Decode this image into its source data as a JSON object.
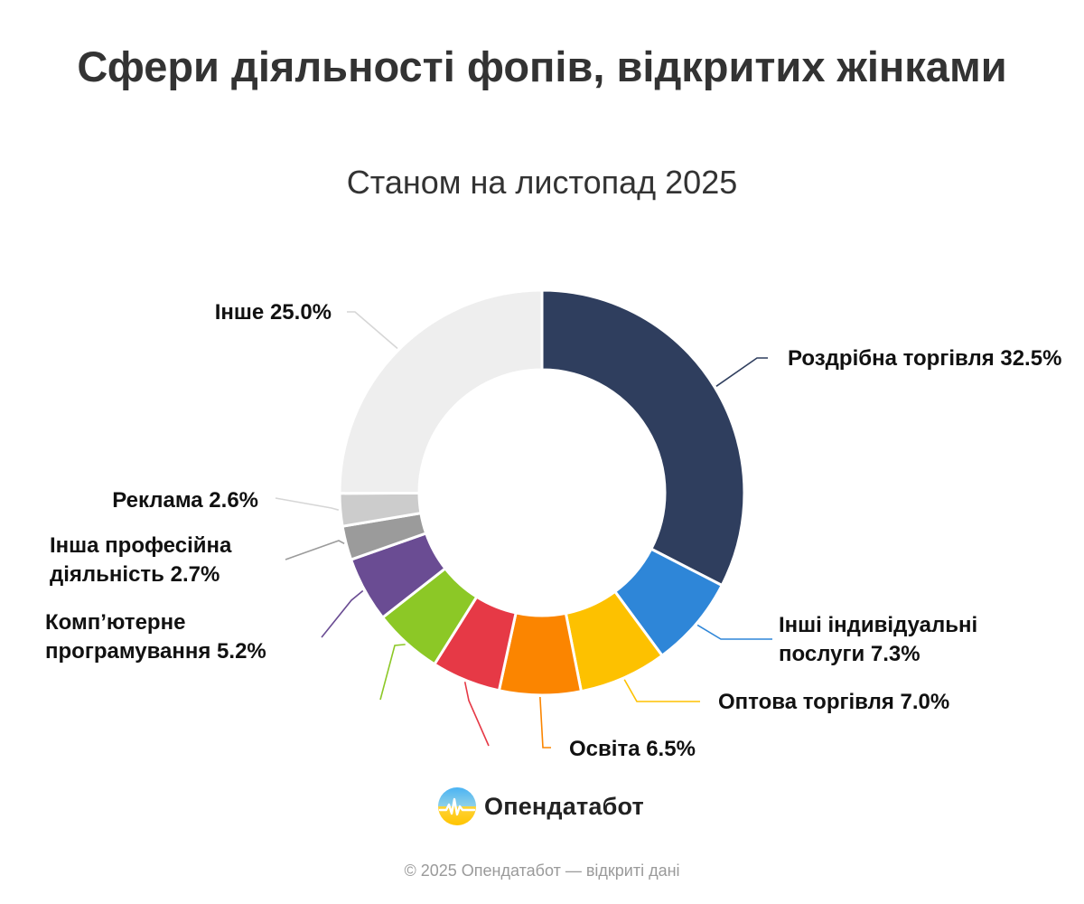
{
  "title": "Сфери діяльності фопів, відкритих жінками",
  "subtitle": "Станом на листопад 2025",
  "brand": {
    "name": "Опендатабот"
  },
  "footer": "© 2025 Опендатабот — відкриті дані",
  "chart_data": {
    "type": "pie",
    "donut": true,
    "legend": "none",
    "slices": [
      {
        "label": "Роздрібна торгівля 32.5%",
        "value": 32.5,
        "color": "#2f3e5e"
      },
      {
        "label": "Інші індивідуальні послуги 7.3%",
        "value": 7.3,
        "color": "#2e86d8"
      },
      {
        "label": "Оптова торгівля 7.0%",
        "value": 7.0,
        "color": "#fdc100"
      },
      {
        "label": "Освіта 6.5%",
        "value": 6.5,
        "color": "#fb8500"
      },
      {
        "label": "",
        "value": 5.5,
        "color": "#e63946"
      },
      {
        "label": "",
        "value": 5.5,
        "color": "#8cc826"
      },
      {
        "label": "Комп’ютерне програмування 5.2%",
        "value": 5.2,
        "color": "#6a4c93"
      },
      {
        "label": "Інша професійна діяльність 2.7%",
        "value": 2.7,
        "color": "#9b9b9b"
      },
      {
        "label": "Реклама 2.6%",
        "value": 2.6,
        "color": "#cccccc"
      },
      {
        "label": "Інше 25.0%",
        "value": 25.0,
        "color": "#eeeeee"
      }
    ]
  }
}
